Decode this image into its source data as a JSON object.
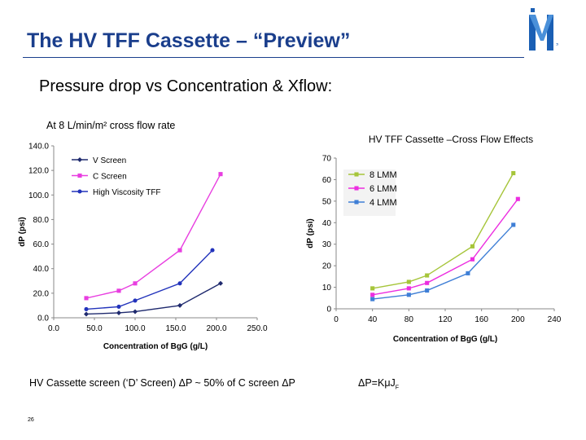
{
  "slide": {
    "title": "The HV TFF Cassette – “Preview”",
    "subtitle": "Pressure drop vs Concentration & Xflow:",
    "caption": "At 8 L/min/m² cross flow rate",
    "footer_note": "HV Cassette screen (‘D’ Screen) ΔP  ~ 50% of C screen ΔP",
    "formula_prefix": "ΔP=Kμ",
    "formula_j": "J",
    "formula_sub": "F",
    "page_number": "26",
    "logo_letter": "M"
  },
  "colors": {
    "title": "#1a3e8c",
    "logo_blue": "#1a5fb4",
    "logo_light": "#4a90d9"
  },
  "chart_data": [
    {
      "type": "line",
      "title": "",
      "xlabel": "Concentration of BgG (g/L)",
      "ylabel": "dP (psi)",
      "xlim": [
        0,
        250
      ],
      "ylim": [
        0,
        140
      ],
      "xticks": [
        "0.0",
        "50.0",
        "100.0",
        "150.0",
        "200.0",
        "250.0"
      ],
      "yticks": [
        "0.0",
        "20.0",
        "40.0",
        "60.0",
        "80.0",
        "100.0",
        "120.0",
        "140.0"
      ],
      "grid": false,
      "legend": "top-left",
      "series": [
        {
          "name": "V Screen",
          "color": "#1f2a6e",
          "marker": "diamond",
          "x": [
            40,
            80,
            100,
            155,
            205
          ],
          "y": [
            3,
            4,
            5,
            10,
            28
          ]
        },
        {
          "name": "C Screen",
          "color": "#e83ee0",
          "marker": "square",
          "x": [
            40,
            80,
            100,
            155,
            205
          ],
          "y": [
            16,
            22,
            28,
            55,
            117
          ]
        },
        {
          "name": "High Viscosity TFF",
          "color": "#2233bb",
          "marker": "circle",
          "x": [
            40,
            80,
            100,
            155,
            195
          ],
          "y": [
            7,
            9,
            14,
            28,
            55
          ]
        }
      ]
    },
    {
      "type": "line",
      "title": "HV TFF Cassette –Cross Flow Effects",
      "xlabel": "Concentration of BgG (g/L)",
      "ylabel": "dP (psi)",
      "xlim": [
        0,
        240
      ],
      "ylim": [
        0,
        70
      ],
      "xticks": [
        "0",
        "40",
        "80",
        "120",
        "160",
        "200",
        "240"
      ],
      "yticks": [
        "0",
        "10",
        "20",
        "30",
        "40",
        "50",
        "60",
        "70"
      ],
      "grid": false,
      "legend": "top-left",
      "series": [
        {
          "name": "8 LMM",
          "color": "#a6c53a",
          "marker": "square",
          "x": [
            40,
            80,
            100,
            150,
            195
          ],
          "y": [
            9.5,
            12.5,
            15.5,
            29,
            63
          ]
        },
        {
          "name": "6 LMM",
          "color": "#ec2ee0",
          "marker": "square",
          "x": [
            40,
            80,
            100,
            150,
            200
          ],
          "y": [
            6.5,
            9.5,
            12,
            23,
            51
          ]
        },
        {
          "name": "4 LMM",
          "color": "#3f7fd6",
          "marker": "square",
          "x": [
            40,
            80,
            100,
            145,
            195
          ],
          "y": [
            4.5,
            6.5,
            8.5,
            16.5,
            39
          ]
        }
      ]
    }
  ]
}
